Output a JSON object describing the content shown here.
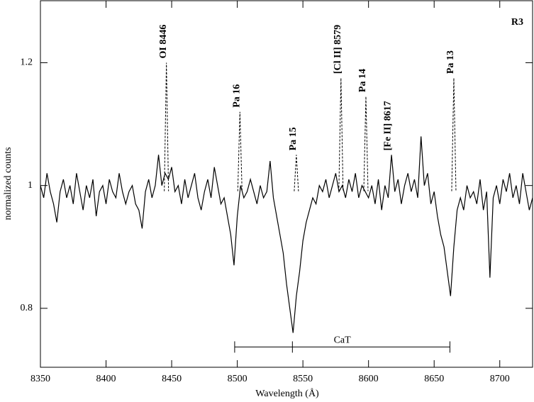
{
  "chart_data": {
    "type": "line",
    "xlabel": "Wavelength  (Å)",
    "ylabel": "normalized counts",
    "panel_label": "R3",
    "color": "#000000",
    "xlim": [
      8350,
      8725
    ],
    "ylim": [
      0.704,
      1.301
    ],
    "xticks": [
      8350,
      8400,
      8450,
      8500,
      8550,
      8600,
      8650,
      8700
    ],
    "yticks": [
      0.8,
      1,
      1.2
    ],
    "x": [
      8350,
      8352.5,
      8355,
      8357.5,
      8360,
      8362.5,
      8365,
      8367.5,
      8370,
      8372.5,
      8375,
      8377.5,
      8380,
      8382.5,
      8385,
      8387.5,
      8390,
      8392.5,
      8395,
      8397.5,
      8400,
      8402.5,
      8405,
      8407.5,
      8410,
      8412.5,
      8415,
      8417.5,
      8420,
      8422.5,
      8425,
      8427.5,
      8430,
      8432.5,
      8435,
      8437.5,
      8440,
      8442.5,
      8445,
      8447.5,
      8450,
      8452.5,
      8455,
      8457.5,
      8460,
      8462.5,
      8465,
      8467.5,
      8470,
      8472.5,
      8475,
      8477.5,
      8480,
      8482.5,
      8485,
      8487.5,
      8490,
      8492.5,
      8495,
      8497.5,
      8500,
      8502.5,
      8505,
      8507.5,
      8510,
      8512.5,
      8515,
      8517.5,
      8520,
      8522.5,
      8525,
      8527.5,
      8530,
      8532.5,
      8535,
      8537.5,
      8540,
      8542.5,
      8545,
      8547.5,
      8550,
      8552.5,
      8555,
      8557.5,
      8560,
      8562.5,
      8565,
      8567.5,
      8570,
      8572.5,
      8575,
      8577.5,
      8580,
      8582.5,
      8585,
      8587.5,
      8590,
      8592.5,
      8595,
      8597.5,
      8600,
      8602.5,
      8605,
      8607.5,
      8610,
      8612.5,
      8615,
      8617.5,
      8620,
      8622.5,
      8625,
      8627.5,
      8630,
      8632.5,
      8635,
      8637.5,
      8640,
      8642.5,
      8645,
      8647.5,
      8650,
      8652.5,
      8655,
      8657.5,
      8660,
      8662.5,
      8665,
      8667.5,
      8670,
      8672.5,
      8675,
      8677.5,
      8680,
      8682.5,
      8685,
      8687.5,
      8690,
      8692.5,
      8695,
      8697.5,
      8700,
      8702.5,
      8705,
      8707.5,
      8710,
      8712.5,
      8715,
      8717.5,
      8720,
      8722.5,
      8725
    ],
    "values": [
      1.0,
      0.98,
      1.02,
      0.99,
      0.97,
      0.94,
      0.99,
      1.01,
      0.98,
      1.0,
      0.97,
      1.02,
      0.99,
      0.96,
      1.0,
      0.98,
      1.01,
      0.95,
      0.99,
      1.0,
      0.97,
      1.01,
      0.99,
      0.98,
      1.02,
      0.99,
      0.97,
      0.99,
      1.0,
      0.97,
      0.96,
      0.93,
      0.99,
      1.01,
      0.98,
      1.0,
      1.05,
      1.0,
      1.02,
      1.01,
      1.03,
      0.99,
      1.0,
      0.97,
      1.01,
      0.98,
      1.0,
      1.02,
      0.98,
      0.96,
      0.99,
      1.01,
      0.98,
      1.03,
      1.0,
      0.97,
      0.98,
      0.95,
      0.92,
      0.87,
      0.95,
      1.0,
      0.98,
      0.99,
      1.01,
      0.99,
      0.97,
      1.0,
      0.98,
      0.99,
      1.04,
      0.98,
      0.95,
      0.92,
      0.89,
      0.84,
      0.8,
      0.76,
      0.82,
      0.86,
      0.91,
      0.94,
      0.96,
      0.98,
      0.97,
      1.0,
      0.99,
      1.01,
      0.98,
      1.0,
      1.02,
      0.99,
      1.0,
      0.98,
      1.01,
      0.99,
      1.02,
      0.98,
      1.0,
      0.99,
      0.98,
      1.0,
      0.97,
      1.01,
      0.96,
      1.0,
      0.98,
      1.05,
      0.99,
      1.01,
      0.97,
      1.0,
      1.02,
      0.99,
      1.01,
      0.98,
      1.08,
      1.0,
      1.02,
      0.97,
      0.99,
      0.95,
      0.92,
      0.9,
      0.86,
      0.82,
      0.9,
      0.96,
      0.98,
      0.96,
      1.0,
      0.98,
      0.99,
      0.97,
      1.01,
      0.96,
      0.99,
      0.85,
      0.98,
      1.0,
      0.97,
      1.01,
      0.99,
      1.02,
      0.98,
      1.0,
      0.97,
      1.02,
      0.99,
      0.96,
      0.98
    ],
    "dashed_lines": [
      {
        "x": 8446,
        "peak": 1.2
      },
      {
        "x": 8502,
        "peak": 1.12
      },
      {
        "x": 8545,
        "peak": 1.05
      },
      {
        "x": 8579,
        "peak": 1.175
      },
      {
        "x": 8598,
        "peak": 1.145
      },
      {
        "x": 8665,
        "peak": 1.175
      }
    ],
    "annotations": [
      {
        "text": "OI 8446",
        "x": 8446,
        "y": 1.2
      },
      {
        "text": "Pa 16",
        "x": 8502,
        "y": 1.12
      },
      {
        "text": "Pa 15",
        "x": 8545,
        "y": 1.05
      },
      {
        "text": "[Cl II] 8579",
        "x": 8579,
        "y": 1.175
      },
      {
        "text": "Pa 14",
        "x": 8598,
        "y": 1.145
      },
      {
        "text": "[Fe II] 8617",
        "x": 8617,
        "y": 1.05
      },
      {
        "text": "Pa 13",
        "x": 8665,
        "y": 1.175
      }
    ],
    "bracket": {
      "label": "CaT",
      "x": [
        8498,
        8542,
        8662
      ],
      "level": 0.737
    }
  }
}
